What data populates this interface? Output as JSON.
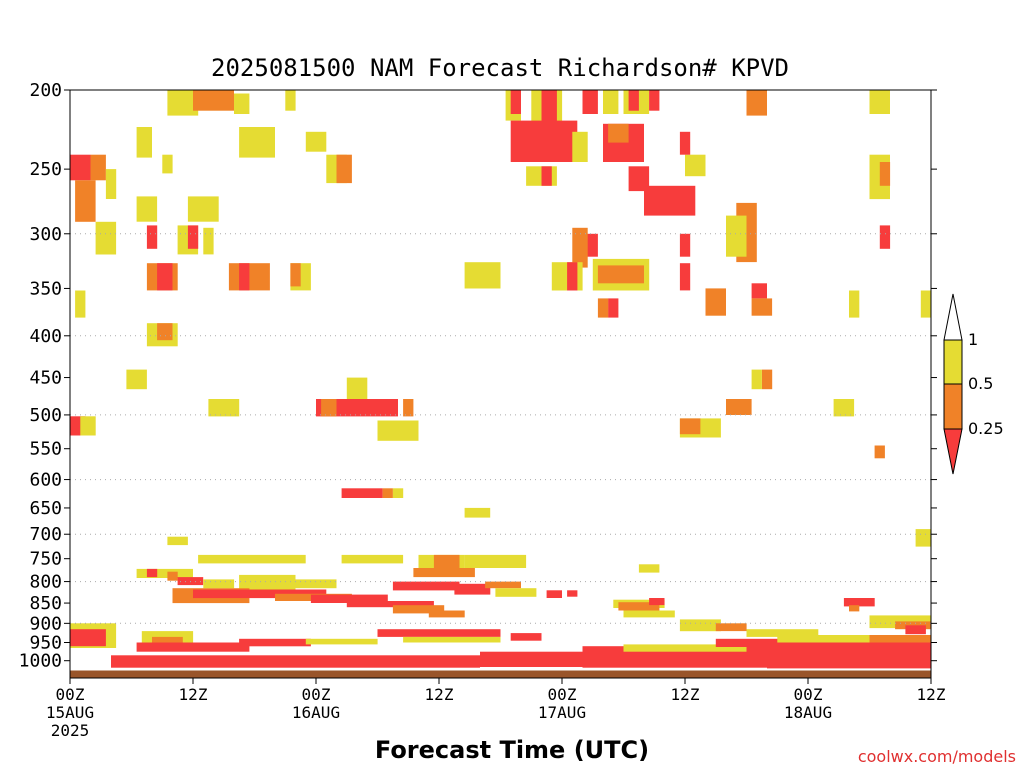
{
  "chart_data": {
    "type": "heatmap",
    "title": "2025081500 NAM Forecast Richardson# KPVD",
    "xlabel": "Forecast Time (UTC)",
    "ylabel": "",
    "credit": "coolwx.com/models",
    "y_axis": {
      "scale": "log",
      "range": [
        1050,
        200
      ],
      "ticks": [
        "200",
        "250",
        "300",
        "350",
        "400",
        "450",
        "500",
        "550",
        "600",
        "650",
        "700",
        "750",
        "800",
        "850",
        "900",
        "950",
        "1000"
      ],
      "gridlines_at": [
        300,
        400,
        500,
        600,
        700,
        800,
        900
      ]
    },
    "x_axis": {
      "range_hours": [
        0,
        84
      ],
      "ticks": [
        {
          "hour": 0,
          "lines": [
            "00Z",
            "15AUG",
            "2025"
          ]
        },
        {
          "hour": 12,
          "lines": [
            "12Z"
          ]
        },
        {
          "hour": 24,
          "lines": [
            "00Z",
            "16AUG"
          ]
        },
        {
          "hour": 36,
          "lines": [
            "12Z"
          ]
        },
        {
          "hour": 48,
          "lines": [
            "00Z",
            "17AUG"
          ]
        },
        {
          "hour": 60,
          "lines": [
            "12Z"
          ]
        },
        {
          "hour": 72,
          "lines": [
            "00Z",
            "18AUG"
          ]
        },
        {
          "hour": 84,
          "lines": [
            "12Z"
          ]
        }
      ]
    },
    "legend": {
      "placement": "right",
      "levels": [
        "1",
        "0.5",
        "0.25"
      ],
      "bins": [
        {
          "label": "> 1",
          "color": "#ffffff"
        },
        {
          "label": "0.5 - 1",
          "color": "#e5dc33"
        },
        {
          "label": "0.25 - 0.5",
          "color": "#f08228"
        },
        {
          "label": "< 0.25",
          "color": "#f73c3c"
        }
      ]
    },
    "colors": {
      "low": "#f73c3c",
      "mid": "#f08228",
      "high": "#e5dc33",
      "ground": "#99552a",
      "grid": "#aaaaaa"
    },
    "cells": [
      {
        "h": 9.5,
        "h2": 12.5,
        "p1": 200,
        "p2": 215,
        "bin": "high"
      },
      {
        "h": 12,
        "h2": 16,
        "p1": 200,
        "p2": 212,
        "bin": "mid"
      },
      {
        "h": 16,
        "h2": 17.5,
        "p1": 202,
        "p2": 214,
        "bin": "high"
      },
      {
        "h": 21,
        "h2": 22,
        "p1": 200,
        "p2": 212,
        "bin": "high"
      },
      {
        "h": 6.5,
        "h2": 8,
        "p1": 222,
        "p2": 242,
        "bin": "high"
      },
      {
        "h": 9,
        "h2": 10,
        "p1": 240,
        "p2": 253,
        "bin": "high"
      },
      {
        "h": 16.5,
        "h2": 20,
        "p1": 222,
        "p2": 242,
        "bin": "high"
      },
      {
        "h": 23,
        "h2": 25,
        "p1": 225,
        "p2": 238,
        "bin": "high"
      },
      {
        "h": 0,
        "h2": 2,
        "p1": 240,
        "p2": 258,
        "bin": "low"
      },
      {
        "h": 2,
        "h2": 3.5,
        "p1": 240,
        "p2": 258,
        "bin": "mid"
      },
      {
        "h": 3.5,
        "h2": 4.5,
        "p1": 250,
        "p2": 272,
        "bin": "high"
      },
      {
        "h": 0.5,
        "h2": 2.5,
        "p1": 258,
        "p2": 290,
        "bin": "mid"
      },
      {
        "h": 6.5,
        "h2": 8.5,
        "p1": 270,
        "p2": 290,
        "bin": "high"
      },
      {
        "h": 11.5,
        "h2": 14.5,
        "p1": 270,
        "p2": 290,
        "bin": "high"
      },
      {
        "h": 2.5,
        "h2": 4.5,
        "p1": 290,
        "p2": 318,
        "bin": "high"
      },
      {
        "h": 7.5,
        "h2": 8.5,
        "p1": 293,
        "p2": 313,
        "bin": "low"
      },
      {
        "h": 10.5,
        "h2": 12.5,
        "p1": 293,
        "p2": 318,
        "bin": "high"
      },
      {
        "h": 11.5,
        "h2": 12.5,
        "p1": 293,
        "p2": 313,
        "bin": "low"
      },
      {
        "h": 13,
        "h2": 14,
        "p1": 295,
        "p2": 318,
        "bin": "high"
      },
      {
        "h": 7.5,
        "h2": 10.5,
        "p1": 326,
        "p2": 352,
        "bin": "mid"
      },
      {
        "h": 8.5,
        "h2": 10,
        "p1": 326,
        "p2": 352,
        "bin": "low"
      },
      {
        "h": 15.5,
        "h2": 19.5,
        "p1": 326,
        "p2": 352,
        "bin": "mid"
      },
      {
        "h": 16.5,
        "h2": 17.5,
        "p1": 326,
        "p2": 352,
        "bin": "low"
      },
      {
        "h": 21.5,
        "h2": 23.5,
        "p1": 326,
        "p2": 352,
        "bin": "high"
      },
      {
        "h": 21.5,
        "h2": 22.5,
        "p1": 326,
        "p2": 348,
        "bin": "mid"
      },
      {
        "h": 0.5,
        "h2": 1.5,
        "p1": 352,
        "p2": 380,
        "bin": "high"
      },
      {
        "h": 7.5,
        "h2": 10.5,
        "p1": 386,
        "p2": 412,
        "bin": "high"
      },
      {
        "h": 8.5,
        "h2": 10,
        "p1": 386,
        "p2": 405,
        "bin": "mid"
      },
      {
        "h": 25,
        "h2": 27,
        "p1": 240,
        "p2": 260,
        "bin": "high"
      },
      {
        "h": 26,
        "h2": 27.5,
        "p1": 240,
        "p2": 260,
        "bin": "mid"
      },
      {
        "h": 42.5,
        "h2": 44,
        "p1": 200,
        "p2": 218,
        "bin": "high"
      },
      {
        "h": 43,
        "h2": 44,
        "p1": 200,
        "p2": 214,
        "bin": "low"
      },
      {
        "h": 45,
        "h2": 48,
        "p1": 200,
        "p2": 220,
        "bin": "high"
      },
      {
        "h": 46,
        "h2": 47.5,
        "p1": 200,
        "p2": 222,
        "bin": "low"
      },
      {
        "h": 50,
        "h2": 51.5,
        "p1": 200,
        "p2": 214,
        "bin": "low"
      },
      {
        "h": 52,
        "h2": 53.5,
        "p1": 200,
        "p2": 214,
        "bin": "high"
      },
      {
        "h": 54,
        "h2": 56.5,
        "p1": 200,
        "p2": 214,
        "bin": "high"
      },
      {
        "h": 54.5,
        "h2": 55.5,
        "p1": 200,
        "p2": 212,
        "bin": "low"
      },
      {
        "h": 56.5,
        "h2": 57.5,
        "p1": 200,
        "p2": 212,
        "bin": "low"
      },
      {
        "h": 43,
        "h2": 49.5,
        "p1": 218,
        "p2": 245,
        "bin": "low"
      },
      {
        "h": 49,
        "h2": 50.5,
        "p1": 225,
        "p2": 245,
        "bin": "high"
      },
      {
        "h": 52,
        "h2": 56,
        "p1": 220,
        "p2": 245,
        "bin": "low"
      },
      {
        "h": 52.5,
        "h2": 54.5,
        "p1": 220,
        "p2": 232,
        "bin": "mid"
      },
      {
        "h": 44.5,
        "h2": 47.5,
        "p1": 248,
        "p2": 262,
        "bin": "high"
      },
      {
        "h": 46,
        "h2": 47,
        "p1": 248,
        "p2": 262,
        "bin": "low"
      },
      {
        "h": 54.5,
        "h2": 56.5,
        "p1": 248,
        "p2": 266,
        "bin": "low"
      },
      {
        "h": 56,
        "h2": 61,
        "p1": 262,
        "p2": 285,
        "bin": "low"
      },
      {
        "h": 60,
        "h2": 62,
        "p1": 240,
        "p2": 255,
        "bin": "high"
      },
      {
        "h": 59.5,
        "h2": 60.5,
        "p1": 225,
        "p2": 240,
        "bin": "low"
      },
      {
        "h": 50,
        "h2": 51.5,
        "p1": 300,
        "p2": 320,
        "bin": "low"
      },
      {
        "h": 49,
        "h2": 50.5,
        "p1": 295,
        "p2": 330,
        "bin": "mid"
      },
      {
        "h": 51,
        "h2": 56.5,
        "p1": 322,
        "p2": 352,
        "bin": "high"
      },
      {
        "h": 51.5,
        "h2": 56,
        "p1": 328,
        "p2": 345,
        "bin": "mid"
      },
      {
        "h": 38.5,
        "h2": 42,
        "p1": 325,
        "p2": 350,
        "bin": "high"
      },
      {
        "h": 47,
        "h2": 50,
        "p1": 325,
        "p2": 352,
        "bin": "high"
      },
      {
        "h": 48.5,
        "h2": 49.5,
        "p1": 325,
        "p2": 352,
        "bin": "low"
      },
      {
        "h": 52.5,
        "h2": 53.5,
        "p1": 360,
        "p2": 380,
        "bin": "low"
      },
      {
        "h": 51.5,
        "h2": 52.5,
        "p1": 360,
        "p2": 380,
        "bin": "mid"
      },
      {
        "h": 59.5,
        "h2": 60.5,
        "p1": 300,
        "p2": 320,
        "bin": "low"
      },
      {
        "h": 59.5,
        "h2": 60.5,
        "p1": 326,
        "p2": 352,
        "bin": "low"
      },
      {
        "h": 62,
        "h2": 64,
        "p1": 350,
        "p2": 378,
        "bin": "mid"
      },
      {
        "h": 65,
        "h2": 67,
        "p1": 275,
        "p2": 325,
        "bin": "mid"
      },
      {
        "h": 64,
        "h2": 66,
        "p1": 285,
        "p2": 320,
        "bin": "high"
      },
      {
        "h": 66.5,
        "h2": 68,
        "p1": 345,
        "p2": 360,
        "bin": "low"
      },
      {
        "h": 66.5,
        "h2": 68.5,
        "p1": 360,
        "p2": 378,
        "bin": "mid"
      },
      {
        "h": 66,
        "h2": 68,
        "p1": 200,
        "p2": 215,
        "bin": "mid"
      },
      {
        "h": 78,
        "h2": 80,
        "p1": 200,
        "p2": 214,
        "bin": "high"
      },
      {
        "h": 78,
        "h2": 80,
        "p1": 240,
        "p2": 272,
        "bin": "high"
      },
      {
        "h": 79,
        "h2": 80,
        "p1": 245,
        "p2": 262,
        "bin": "mid"
      },
      {
        "h": 79,
        "h2": 80,
        "p1": 293,
        "p2": 313,
        "bin": "low"
      },
      {
        "h": 76,
        "h2": 77,
        "p1": 352,
        "p2": 380,
        "bin": "high"
      },
      {
        "h": 83,
        "h2": 84,
        "p1": 352,
        "p2": 380,
        "bin": "high"
      },
      {
        "h": 67.5,
        "h2": 68.5,
        "p1": 440,
        "p2": 465,
        "bin": "mid"
      },
      {
        "h": 66.5,
        "h2": 67.5,
        "p1": 440,
        "p2": 465,
        "bin": "high"
      },
      {
        "h": 5.5,
        "h2": 7.5,
        "p1": 440,
        "p2": 465,
        "bin": "high"
      },
      {
        "h": 13.5,
        "h2": 16.5,
        "p1": 478,
        "p2": 502,
        "bin": "high"
      },
      {
        "h": 24,
        "h2": 32,
        "p1": 478,
        "p2": 502,
        "bin": "low"
      },
      {
        "h": 24.5,
        "h2": 26,
        "p1": 478,
        "p2": 502,
        "bin": "mid"
      },
      {
        "h": 32.5,
        "h2": 33.5,
        "p1": 478,
        "p2": 502,
        "bin": "mid"
      },
      {
        "h": 27,
        "h2": 29,
        "p1": 450,
        "p2": 478,
        "bin": "high"
      },
      {
        "h": 0,
        "h2": 1.5,
        "p1": 502,
        "p2": 530,
        "bin": "low"
      },
      {
        "h": 1,
        "h2": 2.5,
        "p1": 502,
        "p2": 530,
        "bin": "high"
      },
      {
        "h": 30,
        "h2": 34,
        "p1": 508,
        "p2": 538,
        "bin": "high"
      },
      {
        "h": 59.5,
        "h2": 63.5,
        "p1": 505,
        "p2": 533,
        "bin": "high"
      },
      {
        "h": 59.5,
        "h2": 61.5,
        "p1": 505,
        "p2": 528,
        "bin": "mid"
      },
      {
        "h": 64,
        "h2": 66.5,
        "p1": 478,
        "p2": 500,
        "bin": "mid"
      },
      {
        "h": 74.5,
        "h2": 76.5,
        "p1": 478,
        "p2": 502,
        "bin": "high"
      },
      {
        "h": 78.5,
        "h2": 79.5,
        "p1": 545,
        "p2": 565,
        "bin": "mid"
      },
      {
        "h": 26.5,
        "h2": 30.5,
        "p1": 615,
        "p2": 632,
        "bin": "low"
      },
      {
        "h": 30.5,
        "h2": 31.5,
        "p1": 615,
        "p2": 632,
        "bin": "mid"
      },
      {
        "h": 31.5,
        "h2": 32.5,
        "p1": 615,
        "p2": 632,
        "bin": "high"
      },
      {
        "h": 38.5,
        "h2": 41,
        "p1": 650,
        "p2": 668,
        "bin": "high"
      },
      {
        "h": 9.5,
        "h2": 11.5,
        "p1": 705,
        "p2": 722,
        "bin": "high"
      },
      {
        "h": 82.5,
        "h2": 84,
        "p1": 690,
        "p2": 725,
        "bin": "high"
      },
      {
        "h": 12.5,
        "h2": 23,
        "p1": 742,
        "p2": 760,
        "bin": "high"
      },
      {
        "h": 26.5,
        "h2": 32.5,
        "p1": 742,
        "p2": 760,
        "bin": "high"
      },
      {
        "h": 34,
        "h2": 38.5,
        "p1": 742,
        "p2": 775,
        "bin": "high"
      },
      {
        "h": 35.5,
        "h2": 38,
        "p1": 742,
        "p2": 770,
        "bin": "mid"
      },
      {
        "h": 38.5,
        "h2": 44.5,
        "p1": 742,
        "p2": 770,
        "bin": "high"
      },
      {
        "h": 33.5,
        "h2": 39.5,
        "p1": 770,
        "p2": 790,
        "bin": "mid"
      },
      {
        "h": 55.5,
        "h2": 57.5,
        "p1": 762,
        "p2": 780,
        "bin": "high"
      },
      {
        "h": 6.5,
        "h2": 12,
        "p1": 772,
        "p2": 792,
        "bin": "high"
      },
      {
        "h": 7.5,
        "h2": 8.5,
        "p1": 772,
        "p2": 790,
        "bin": "low"
      },
      {
        "h": 9.5,
        "h2": 10.5,
        "p1": 778,
        "p2": 798,
        "bin": "mid"
      },
      {
        "h": 10.5,
        "h2": 13,
        "p1": 790,
        "p2": 808,
        "bin": "low"
      },
      {
        "h": 13,
        "h2": 16,
        "p1": 795,
        "p2": 815,
        "bin": "high"
      },
      {
        "h": 16.5,
        "h2": 22,
        "p1": 785,
        "p2": 818,
        "bin": "high"
      },
      {
        "h": 22,
        "h2": 26,
        "p1": 795,
        "p2": 815,
        "bin": "high"
      },
      {
        "h": 10,
        "h2": 17.5,
        "p1": 815,
        "p2": 850,
        "bin": "mid"
      },
      {
        "h": 12,
        "h2": 25,
        "p1": 818,
        "p2": 838,
        "bin": "low"
      },
      {
        "h": 20,
        "h2": 27.5,
        "p1": 828,
        "p2": 845,
        "bin": "mid"
      },
      {
        "h": 23.5,
        "h2": 31,
        "p1": 830,
        "p2": 850,
        "bin": "low"
      },
      {
        "h": 27,
        "h2": 35.5,
        "p1": 845,
        "p2": 860,
        "bin": "low"
      },
      {
        "h": 31.5,
        "h2": 36.5,
        "p1": 855,
        "p2": 875,
        "bin": "mid"
      },
      {
        "h": 35,
        "h2": 38.5,
        "p1": 868,
        "p2": 885,
        "bin": "mid"
      },
      {
        "h": 31.5,
        "h2": 38,
        "p1": 800,
        "p2": 820,
        "bin": "low"
      },
      {
        "h": 37.5,
        "h2": 41,
        "p1": 805,
        "p2": 830,
        "bin": "low"
      },
      {
        "h": 40.5,
        "h2": 44,
        "p1": 800,
        "p2": 815,
        "bin": "mid"
      },
      {
        "h": 41.5,
        "h2": 45.5,
        "p1": 815,
        "p2": 835,
        "bin": "high"
      },
      {
        "h": 46.5,
        "h2": 48,
        "p1": 820,
        "p2": 838,
        "bin": "low"
      },
      {
        "h": 48.5,
        "h2": 49.5,
        "p1": 820,
        "p2": 835,
        "bin": "low"
      },
      {
        "h": 53,
        "h2": 58,
        "p1": 842,
        "p2": 862,
        "bin": "high"
      },
      {
        "h": 53.5,
        "h2": 57.5,
        "p1": 848,
        "p2": 868,
        "bin": "mid"
      },
      {
        "h": 56.5,
        "h2": 58,
        "p1": 838,
        "p2": 855,
        "bin": "low"
      },
      {
        "h": 54,
        "h2": 59,
        "p1": 868,
        "p2": 885,
        "bin": "high"
      },
      {
        "h": 59.5,
        "h2": 63.5,
        "p1": 890,
        "p2": 920,
        "bin": "high"
      },
      {
        "h": 63,
        "h2": 66,
        "p1": 900,
        "p2": 920,
        "bin": "mid"
      },
      {
        "h": 66,
        "h2": 73,
        "p1": 915,
        "p2": 935,
        "bin": "high"
      },
      {
        "h": 75.5,
        "h2": 78.5,
        "p1": 838,
        "p2": 858,
        "bin": "low"
      },
      {
        "h": 76,
        "h2": 77,
        "p1": 855,
        "p2": 870,
        "bin": "mid"
      },
      {
        "h": 78,
        "h2": 84,
        "p1": 880,
        "p2": 912,
        "bin": "high"
      },
      {
        "h": 80.5,
        "h2": 84,
        "p1": 895,
        "p2": 915,
        "bin": "mid"
      },
      {
        "h": 81.5,
        "h2": 83.5,
        "p1": 905,
        "p2": 928,
        "bin": "low"
      },
      {
        "h": 0,
        "h2": 4.5,
        "p1": 900,
        "p2": 965,
        "bin": "high"
      },
      {
        "h": 0,
        "h2": 3.5,
        "p1": 915,
        "p2": 960,
        "bin": "low"
      },
      {
        "h": 7,
        "h2": 12,
        "p1": 920,
        "p2": 950,
        "bin": "high"
      },
      {
        "h": 8,
        "h2": 11,
        "p1": 935,
        "p2": 955,
        "bin": "mid"
      },
      {
        "h": 6.5,
        "h2": 17.5,
        "p1": 950,
        "p2": 975,
        "bin": "low"
      },
      {
        "h": 16.5,
        "h2": 23.5,
        "p1": 940,
        "p2": 960,
        "bin": "low"
      },
      {
        "h": 23,
        "h2": 30,
        "p1": 940,
        "p2": 955,
        "bin": "high"
      },
      {
        "h": 30,
        "h2": 42,
        "p1": 915,
        "p2": 935,
        "bin": "low"
      },
      {
        "h": 32.5,
        "h2": 42,
        "p1": 935,
        "p2": 950,
        "bin": "high"
      },
      {
        "h": 43,
        "h2": 46,
        "p1": 925,
        "p2": 945,
        "bin": "low"
      },
      {
        "h": 4,
        "h2": 40,
        "p1": 985,
        "p2": 1020,
        "bin": "low"
      },
      {
        "h": 40,
        "h2": 50,
        "p1": 975,
        "p2": 1018,
        "bin": "low"
      },
      {
        "h": 50,
        "h2": 68,
        "p1": 960,
        "p2": 1020,
        "bin": "low"
      },
      {
        "h": 54,
        "h2": 66,
        "p1": 955,
        "p2": 975,
        "bin": "high"
      },
      {
        "h": 63,
        "h2": 70,
        "p1": 940,
        "p2": 962,
        "bin": "low"
      },
      {
        "h": 68,
        "h2": 84,
        "p1": 945,
        "p2": 1022,
        "bin": "low"
      },
      {
        "h": 69,
        "h2": 78,
        "p1": 930,
        "p2": 950,
        "bin": "high"
      },
      {
        "h": 78,
        "h2": 84,
        "p1": 930,
        "p2": 950,
        "bin": "mid"
      },
      {
        "h": 0,
        "h2": 84,
        "p1": 1028,
        "p2": 1050,
        "bin": "ground"
      }
    ]
  }
}
